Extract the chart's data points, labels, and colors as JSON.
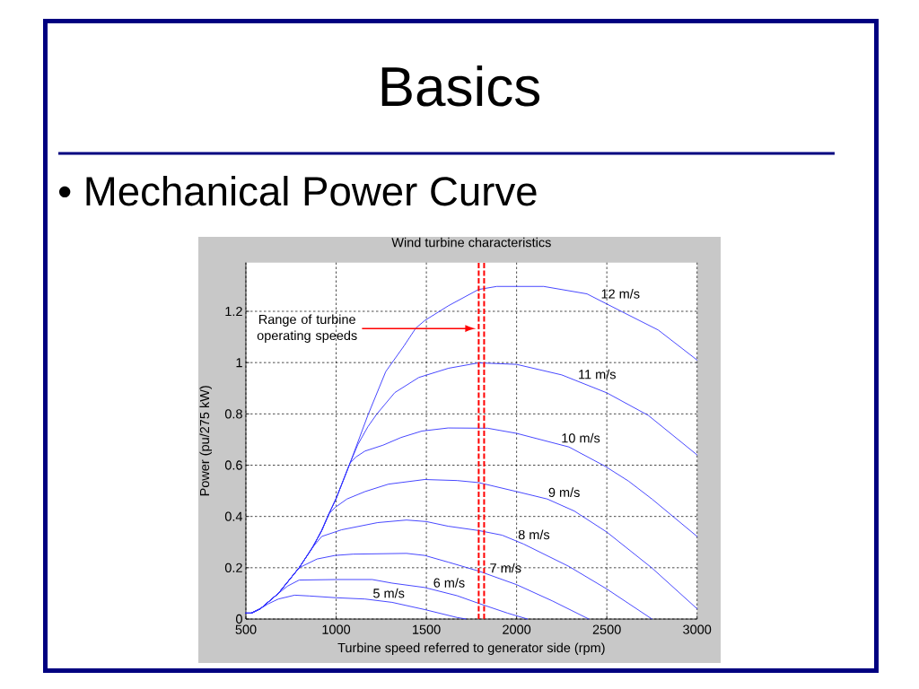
{
  "chart_data": {
    "type": "line",
    "title": "Wind turbine characteristics",
    "xlabel": "Turbine speed referred to generator side (rpm)",
    "ylabel": "Power (pu/275 kW)",
    "xlim": [
      500,
      3000
    ],
    "xticks": [
      500,
      1000,
      1500,
      2000,
      2500,
      3000
    ],
    "ylim": [
      0,
      1.39
    ],
    "yticks": [
      0,
      0.2,
      0.4,
      0.6,
      0.8,
      1,
      1.2
    ],
    "grid": true,
    "series": [
      {
        "name": "12 m/s",
        "color": "#3333ff",
        "x": [
          500,
          530,
          580,
          680,
          795,
          870,
          920,
          960,
          1000,
          1077,
          1176,
          1275,
          1375,
          1441,
          1491,
          1623,
          1789,
          1890,
          2150,
          2390,
          2585,
          2785,
          3000
        ],
        "values": [
          0.023,
          0.023,
          0.04,
          0.1,
          0.2,
          0.28,
          0.345,
          0.41,
          0.47,
          0.608,
          0.795,
          0.965,
          1.064,
          1.134,
          1.164,
          1.222,
          1.285,
          1.297,
          1.297,
          1.268,
          1.198,
          1.127,
          1.01
        ]
      },
      {
        "name": "11 m/s",
        "color": "#3333ff",
        "x": [
          500,
          530,
          580,
          680,
          795,
          870,
          920,
          960,
          1000,
          1077,
          1120,
          1176,
          1226,
          1325,
          1458,
          1623,
          1790,
          2000,
          2250,
          2500,
          2730,
          3000
        ],
        "values": [
          0.023,
          0.023,
          0.04,
          0.1,
          0.2,
          0.28,
          0.345,
          0.41,
          0.47,
          0.608,
          0.68,
          0.75,
          0.8,
          0.883,
          0.942,
          0.978,
          0.999,
          0.993,
          0.952,
          0.882,
          0.794,
          0.64
        ]
      },
      {
        "name": "10 m/s",
        "color": "#3333ff",
        "x": [
          500,
          530,
          580,
          680,
          795,
          870,
          920,
          960,
          1000,
          1077,
          1110,
          1160,
          1260,
          1360,
          1475,
          1620,
          1840,
          2000,
          2290,
          2490,
          2620,
          2750,
          3000
        ],
        "values": [
          0.023,
          0.023,
          0.04,
          0.1,
          0.2,
          0.28,
          0.345,
          0.41,
          0.47,
          0.608,
          0.632,
          0.655,
          0.678,
          0.708,
          0.733,
          0.745,
          0.744,
          0.724,
          0.671,
          0.596,
          0.538,
          0.468,
          0.322
        ]
      },
      {
        "name": "9 m/s",
        "color": "#3333ff",
        "x": [
          500,
          530,
          580,
          680,
          795,
          870,
          920,
          960,
          994,
          1060,
          1160,
          1290,
          1490,
          1670,
          1790,
          2000,
          2170,
          2320,
          2500,
          2750,
          3000
        ],
        "values": [
          0.023,
          0.023,
          0.04,
          0.1,
          0.2,
          0.28,
          0.345,
          0.41,
          0.435,
          0.468,
          0.497,
          0.526,
          0.544,
          0.54,
          0.532,
          0.497,
          0.468,
          0.421,
          0.339,
          0.199,
          0.04
        ]
      },
      {
        "name": "8 m/s",
        "color": "#3333ff",
        "x": [
          500,
          530,
          580,
          680,
          795,
          870,
          920,
          1030,
          1230,
          1390,
          1500,
          1620,
          1790,
          1920,
          2040,
          2290,
          2500,
          2750
        ],
        "values": [
          0.023,
          0.023,
          0.04,
          0.1,
          0.2,
          0.28,
          0.322,
          0.348,
          0.376,
          0.386,
          0.38,
          0.362,
          0.345,
          0.327,
          0.292,
          0.205,
          0.117,
          0
        ]
      },
      {
        "name": "7 m/s",
        "color": "#3333ff",
        "x": [
          500,
          530,
          580,
          680,
          795,
          894,
          994,
          1093,
          1390,
          1490,
          1620,
          1790,
          2000,
          2200,
          2400
        ],
        "values": [
          0.023,
          0.023,
          0.04,
          0.1,
          0.2,
          0.234,
          0.248,
          0.253,
          0.256,
          0.248,
          0.222,
          0.187,
          0.134,
          0.07,
          0
        ]
      },
      {
        "name": "6 m/s",
        "color": "#3333ff",
        "x": [
          500,
          530,
          580,
          680,
          730,
          795,
          1000,
          1200,
          1310,
          1490,
          1670,
          1790,
          1950,
          2060
        ],
        "values": [
          0.023,
          0.023,
          0.04,
          0.1,
          0.128,
          0.152,
          0.154,
          0.154,
          0.14,
          0.123,
          0.091,
          0.061,
          0.023,
          0
        ]
      },
      {
        "name": "5 m/s",
        "color": "#3333ff",
        "x": [
          500,
          530,
          580,
          620,
          680,
          770,
          850,
          1000,
          1160,
          1310,
          1490,
          1670,
          1720
        ],
        "values": [
          0.023,
          0.023,
          0.04,
          0.058,
          0.078,
          0.093,
          0.09,
          0.083,
          0.078,
          0.065,
          0.037,
          0.006,
          0
        ]
      }
    ],
    "ref_lines": [
      {
        "axis": "x",
        "value": 1790,
        "color": "#ff0000",
        "line_style": "dashed"
      },
      {
        "axis": "x",
        "value": 1820,
        "color": "#ff0000",
        "line_style": "dashed"
      }
    ],
    "annotations": [
      "Basics",
      "• Mechanical Power Curve",
      "Range of turbine operating speeds"
    ]
  }
}
